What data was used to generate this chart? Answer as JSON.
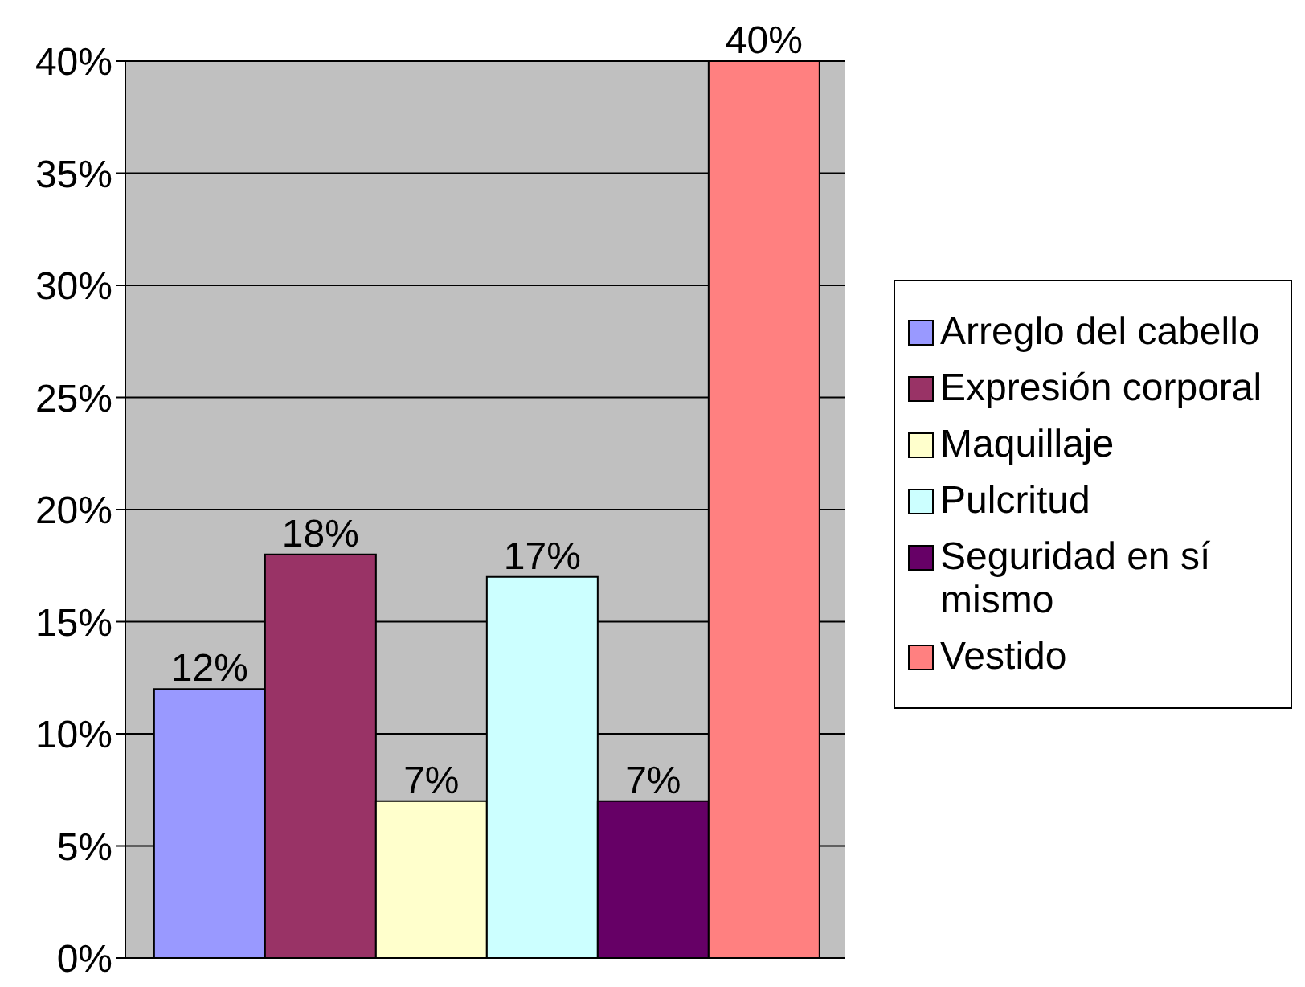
{
  "chart_data": {
    "type": "bar",
    "categories": [
      null
    ],
    "series": [
      {
        "name": "Arreglo del cabello",
        "color": "#9999ff",
        "values": [
          12
        ],
        "value_labels": [
          "12%"
        ]
      },
      {
        "name": "Expresión corporal",
        "color": "#993366",
        "values": [
          18
        ],
        "value_labels": [
          "18%"
        ]
      },
      {
        "name": "Maquillaje",
        "color": "#ffffcc",
        "values": [
          7
        ],
        "value_labels": [
          "7%"
        ]
      },
      {
        "name": "Pulcritud",
        "color": "#ccffff",
        "values": [
          17
        ],
        "value_labels": [
          "17%"
        ]
      },
      {
        "name": "Seguridad en sí mismo",
        "color": "#660066",
        "values": [
          7
        ],
        "value_labels": [
          "7%"
        ]
      },
      {
        "name": "Vestido",
        "color": "#ff8080",
        "values": [
          40
        ],
        "value_labels": [
          "40%"
        ]
      }
    ],
    "ylim": [
      0,
      40
    ],
    "yticks": [
      {
        "value": 0,
        "label": "0%"
      },
      {
        "value": 5,
        "label": "5%"
      },
      {
        "value": 10,
        "label": "10%"
      },
      {
        "value": 15,
        "label": "15%"
      },
      {
        "value": 20,
        "label": "20%"
      },
      {
        "value": 25,
        "label": "25%"
      },
      {
        "value": 30,
        "label": "30%"
      },
      {
        "value": 35,
        "label": "35%"
      },
      {
        "value": 40,
        "label": "40%"
      }
    ],
    "grid": "y",
    "legend": "right"
  }
}
